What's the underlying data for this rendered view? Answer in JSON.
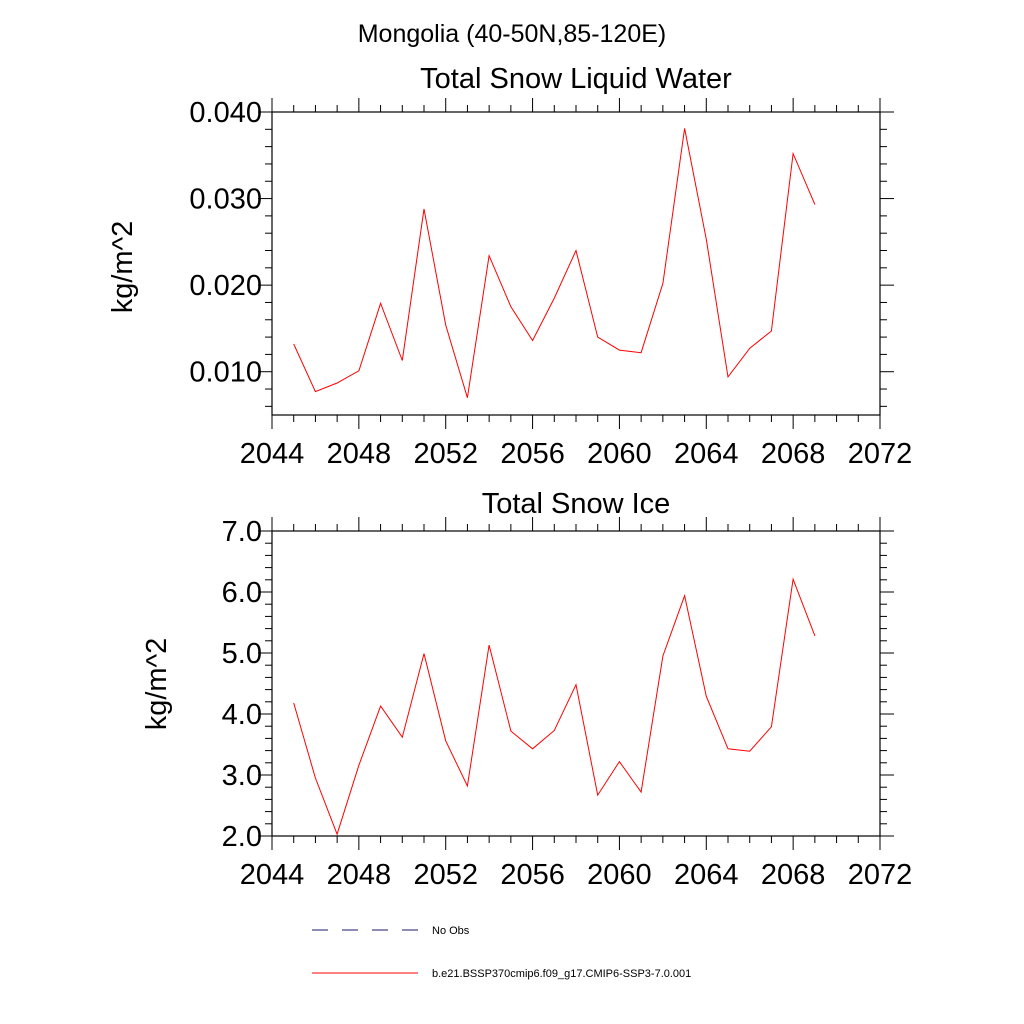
{
  "suptitle": "Mongolia (40-50N,85-120E)",
  "colors": {
    "model": "#ff0000",
    "obs": "#1a1a6e",
    "axis": "#000000"
  },
  "legend": [
    {
      "label": "No Obs",
      "style": "dashed",
      "color": "#1a1a6e"
    },
    {
      "label": "b.e21.BSSP370cmip6.f09_g17.CMIP6-SSP3-7.0.001",
      "style": "solid",
      "color": "#ff0000"
    }
  ],
  "chart_data": [
    {
      "type": "line",
      "title": "Total Snow Liquid Water",
      "xlabel": "",
      "ylabel": "kg/m^2",
      "xlim": [
        2044,
        2072
      ],
      "ylim": [
        0.005,
        0.04
      ],
      "xticks": [
        2044,
        2048,
        2052,
        2056,
        2060,
        2064,
        2068,
        2072
      ],
      "xtick_labels": [
        "2044",
        "2048",
        "2052",
        "2056",
        "2060",
        "2064",
        "2068",
        "2072"
      ],
      "yticks": [
        0.01,
        0.02,
        0.03,
        0.04
      ],
      "ytick_labels": [
        "0.010",
        "0.020",
        "0.030",
        "0.040"
      ],
      "grid": false,
      "x": [
        2045,
        2046,
        2047,
        2048,
        2049,
        2050,
        2051,
        2052,
        2053,
        2054,
        2055,
        2056,
        2057,
        2058,
        2059,
        2060,
        2061,
        2062,
        2063,
        2064,
        2065,
        2066,
        2067,
        2068,
        2069
      ],
      "series": [
        {
          "values": [
            0.0132,
            0.0077,
            0.0087,
            0.0101,
            0.0179,
            0.0113,
            0.0288,
            0.0154,
            0.007,
            0.0234,
            0.0175,
            0.0136,
            0.0185,
            0.024,
            0.014,
            0.0125,
            0.0122,
            0.0202,
            0.0381,
            0.0253,
            0.0094,
            0.0127,
            0.0147,
            0.0352,
            0.0293
          ]
        }
      ]
    },
    {
      "type": "line",
      "title": "Total Snow Ice",
      "xlabel": "",
      "ylabel": "kg/m^2",
      "xlim": [
        2044,
        2072
      ],
      "ylim": [
        2.0,
        7.0
      ],
      "xticks": [
        2044,
        2048,
        2052,
        2056,
        2060,
        2064,
        2068,
        2072
      ],
      "xtick_labels": [
        "2044",
        "2048",
        "2052",
        "2056",
        "2060",
        "2064",
        "2068",
        "2072"
      ],
      "yticks": [
        2.0,
        3.0,
        4.0,
        5.0,
        6.0,
        7.0
      ],
      "ytick_labels": [
        "2.0",
        "3.0",
        "4.0",
        "5.0",
        "6.0",
        "7.0"
      ],
      "grid": false,
      "x": [
        2045,
        2046,
        2047,
        2048,
        2049,
        2050,
        2051,
        2052,
        2053,
        2054,
        2055,
        2056,
        2057,
        2058,
        2059,
        2060,
        2061,
        2062,
        2063,
        2064,
        2065,
        2066,
        2067,
        2068,
        2069
      ],
      "series": [
        {
          "values": [
            4.18,
            2.95,
            2.03,
            3.16,
            4.13,
            3.62,
            4.99,
            3.56,
            2.82,
            5.13,
            3.72,
            3.43,
            3.73,
            4.48,
            2.67,
            3.22,
            2.72,
            4.95,
            5.94,
            4.29,
            3.43,
            3.39,
            3.79,
            6.21,
            5.28
          ]
        }
      ]
    }
  ]
}
